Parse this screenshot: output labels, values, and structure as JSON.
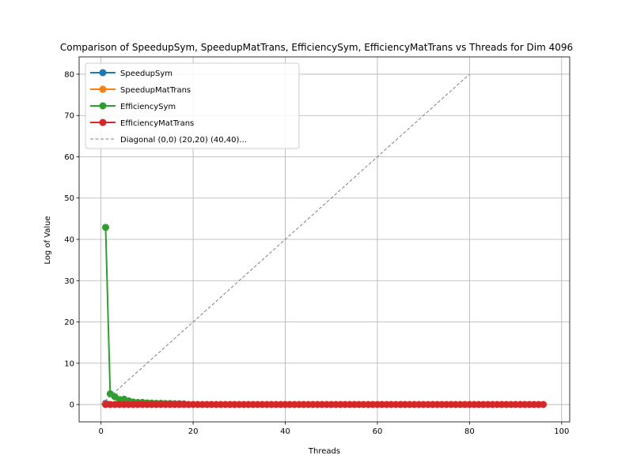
{
  "chart_data": {
    "type": "line",
    "title": "Comparison of SpeedupSym, SpeedupMatTrans, EfficiencySym, EfficiencyMatTrans vs Threads for Dim 4096",
    "xlabel": "Threads",
    "ylabel": "Log of Value",
    "xlim": [
      -4.75,
      101.75
    ],
    "ylim": [
      -4.2,
      84.2
    ],
    "xticks": [
      0,
      20,
      40,
      60,
      80,
      100
    ],
    "yticks": [
      0,
      10,
      20,
      30,
      40,
      50,
      60,
      70,
      80
    ],
    "grid": true,
    "legend_position": "upper-left",
    "series": [
      {
        "name": "SpeedupSym",
        "color": "#1f77b4",
        "x": [
          1
        ],
        "values": [
          0.3
        ]
      },
      {
        "name": "SpeedupMatTrans",
        "color": "#ff7f0e",
        "x": [
          1
        ],
        "values": [
          0.1
        ]
      },
      {
        "name": "EfficiencySym",
        "color": "#2ca02c",
        "x": [
          1,
          2,
          3,
          4,
          5,
          6,
          7,
          8,
          9,
          10,
          11,
          12,
          13,
          14,
          15,
          16,
          17,
          18
        ],
        "values": [
          42.9,
          2.6,
          1.9,
          1.2,
          1.3,
          0.9,
          0.6,
          0.5,
          0.5,
          0.4,
          0.35,
          0.3,
          0.3,
          0.25,
          0.25,
          0.2,
          0.2,
          0.15
        ]
      },
      {
        "name": "EfficiencyMatTrans",
        "color": "#d62728",
        "x_range": [
          1,
          96
        ],
        "value": 0.0
      },
      {
        "name": "Diagonal (0,0) (20,20) (40,40)...",
        "color": "#808080",
        "style": "dashed",
        "x": [
          0,
          80
        ],
        "values": [
          0,
          80
        ]
      }
    ]
  }
}
